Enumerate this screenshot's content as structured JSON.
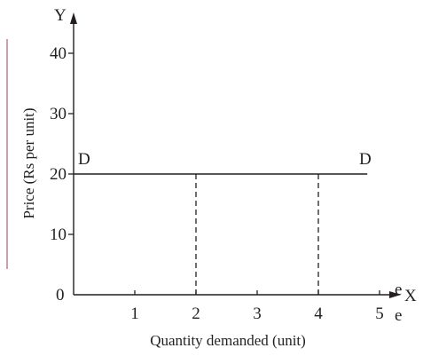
{
  "chart_data": {
    "type": "line",
    "title": "",
    "xlabel": "Quantity demanded (unit)",
    "ylabel": "Price (Rs per unit)",
    "x_axis_letter": "X",
    "y_axis_letter": "Y",
    "x_ticks": [
      1,
      2,
      3,
      4,
      5
    ],
    "y_ticks": [
      10,
      20,
      30,
      40
    ],
    "origin_label": "0",
    "xlim": [
      0,
      5
    ],
    "ylim": [
      0,
      40
    ],
    "grid": false,
    "series": [
      {
        "x": [
          0,
          4.8
        ],
        "y": [
          20,
          20
        ],
        "label_left": "D",
        "label_right": "D",
        "color": "#231f20"
      }
    ],
    "guides": [
      {
        "x": 2,
        "y": 20,
        "style": "dashed"
      },
      {
        "x": 4,
        "y": 20,
        "style": "dashed"
      }
    ]
  },
  "page_fragments": {
    "line_1": "e",
    "line_2": "e"
  },
  "colors": {
    "ink": "#231f20",
    "box_border": "#b0577a"
  }
}
